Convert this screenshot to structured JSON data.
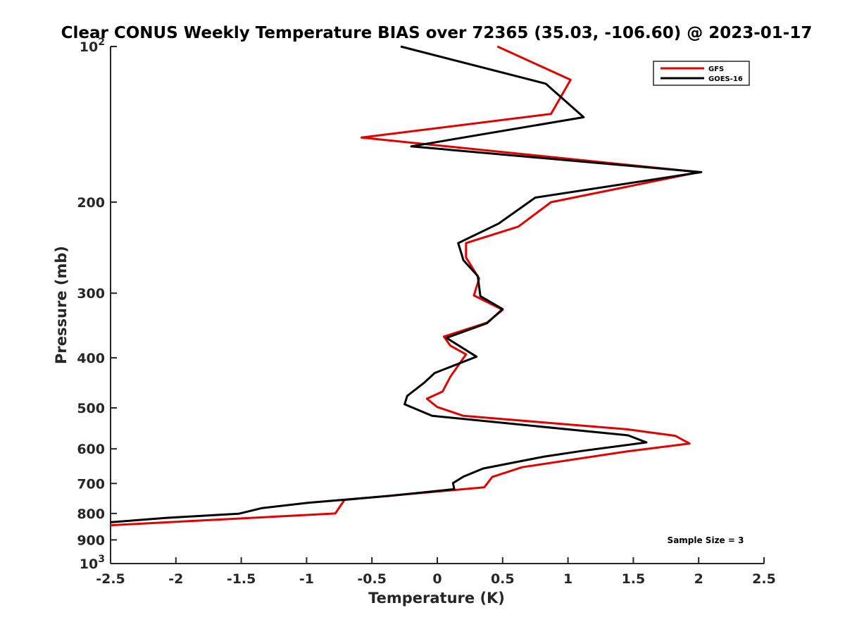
{
  "chart_data": {
    "type": "line",
    "title": "Clear CONUS Weekly Temperature BIAS over 72365 (35.03, -106.60) @ 2023-01-17",
    "xlabel": "Temperature (K)",
    "ylabel": "Pressure (mb)",
    "xlim": [
      -2.5,
      2.5
    ],
    "ylim": [
      100,
      1000
    ],
    "y_scale": "log",
    "y_reversed": true,
    "x_ticks": [
      "-2.5",
      "-2",
      "-1.5",
      "-1",
      "-0.5",
      "0",
      "0.5",
      "1",
      "1.5",
      "2",
      "2.5"
    ],
    "y_ticks": [
      {
        "value": 100,
        "base": "10",
        "exp": "2"
      },
      {
        "value": 200,
        "label": "200"
      },
      {
        "value": 300,
        "label": "300"
      },
      {
        "value": 400,
        "label": "400"
      },
      {
        "value": 500,
        "label": "500"
      },
      {
        "value": 600,
        "label": "600"
      },
      {
        "value": 700,
        "label": "700"
      },
      {
        "value": 800,
        "label": "800"
      },
      {
        "value": 900,
        "label": "900"
      },
      {
        "value": 1000,
        "base": "10",
        "exp": "3"
      }
    ],
    "legend_position": "top-right",
    "annotation": "Sample Size = 3",
    "series": [
      {
        "name": "GFS",
        "color": "#e00000",
        "points": [
          [
            0.46,
            100
          ],
          [
            1.02,
            116
          ],
          [
            0.87,
            135
          ],
          [
            -0.58,
            150
          ],
          [
            2.0,
            175
          ],
          [
            0.87,
            200
          ],
          [
            0.62,
            223
          ],
          [
            0.22,
            240
          ],
          [
            0.22,
            256
          ],
          [
            0.32,
            281
          ],
          [
            0.28,
            303
          ],
          [
            0.5,
            323
          ],
          [
            0.38,
            342
          ],
          [
            0.05,
            364
          ],
          [
            0.1,
            379
          ],
          [
            0.22,
            394
          ],
          [
            0.1,
            435
          ],
          [
            0.04,
            465
          ],
          [
            -0.08,
            480
          ],
          [
            0.0,
            498
          ],
          [
            0.2,
            518
          ],
          [
            1.45,
            550
          ],
          [
            1.82,
            566
          ],
          [
            1.93,
            586
          ],
          [
            1.45,
            607
          ],
          [
            0.65,
            651
          ],
          [
            0.42,
            680
          ],
          [
            0.36,
            712
          ],
          [
            -0.71,
            753
          ],
          [
            -0.78,
            800
          ],
          [
            -2.5,
            843
          ]
        ]
      },
      {
        "name": "GOES-16",
        "color": "#000000",
        "points": [
          [
            -0.28,
            100
          ],
          [
            0.83,
            118
          ],
          [
            1.12,
            137
          ],
          [
            -0.2,
            156
          ],
          [
            2.02,
            175
          ],
          [
            0.75,
            196
          ],
          [
            0.47,
            220
          ],
          [
            0.16,
            240
          ],
          [
            0.2,
            259
          ],
          [
            0.31,
            278
          ],
          [
            0.33,
            304
          ],
          [
            0.5,
            322
          ],
          [
            0.38,
            343
          ],
          [
            0.07,
            366
          ],
          [
            0.3,
            398
          ],
          [
            -0.02,
            428
          ],
          [
            -0.1,
            447
          ],
          [
            -0.23,
            474
          ],
          [
            -0.25,
            492
          ],
          [
            -0.04,
            518
          ],
          [
            1.46,
            565
          ],
          [
            1.6,
            583
          ],
          [
            1.1,
            606
          ],
          [
            0.82,
            621
          ],
          [
            0.35,
            655
          ],
          [
            0.2,
            679
          ],
          [
            0.12,
            699
          ],
          [
            0.13,
            718
          ],
          [
            -0.37,
            740
          ],
          [
            -0.99,
            763
          ],
          [
            -1.34,
            781
          ],
          [
            -1.52,
            801
          ],
          [
            -2.08,
            816
          ],
          [
            -2.5,
            832
          ]
        ]
      }
    ]
  }
}
